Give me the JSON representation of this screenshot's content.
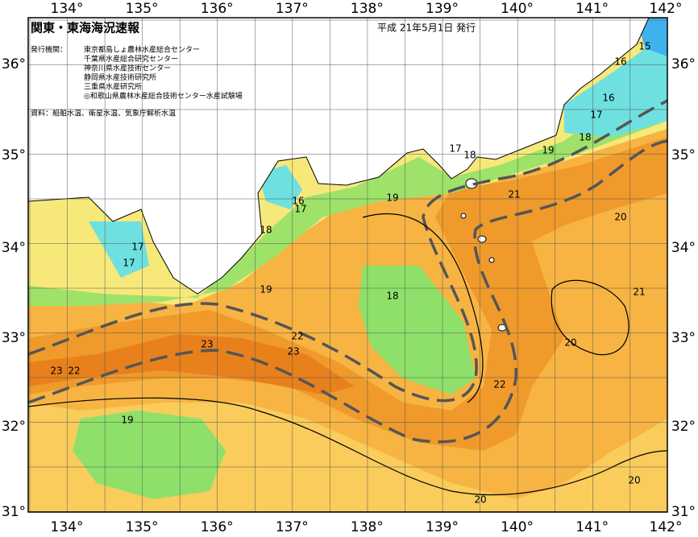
{
  "header": {
    "title": "関東・東海海況速報",
    "date": "平成 21年5月1日 発行"
  },
  "issuers": {
    "label": "発行機関：",
    "items": [
      "東京都島しょ農林水産総合センター",
      "千葉県水産総合研究センター",
      "神奈川県水産技術センター",
      "静岡県水産技術研究所",
      "三重県水産研究所",
      "◎和歌山県農林水産総合技術センター水産試験場"
    ]
  },
  "source": "資料：船舶水温、衛星水温、気象庁解析水温",
  "map": {
    "longitude_labels": [
      "134°",
      "135°",
      "136°",
      "137°",
      "138°",
      "139°",
      "140°",
      "141°",
      "142°"
    ],
    "latitude_labels": [
      "36°",
      "35°",
      "34°",
      "33°",
      "32°",
      "31°"
    ],
    "contour_labels": [
      "15",
      "16",
      "16",
      "17",
      "18",
      "19",
      "17",
      "18",
      "21",
      "20",
      "19",
      "16",
      "17",
      "18",
      "17",
      "17",
      "19",
      "18",
      "21",
      "20",
      "22",
      "23",
      "23",
      "23",
      "22",
      "22",
      "19",
      "20",
      "20"
    ]
  }
}
